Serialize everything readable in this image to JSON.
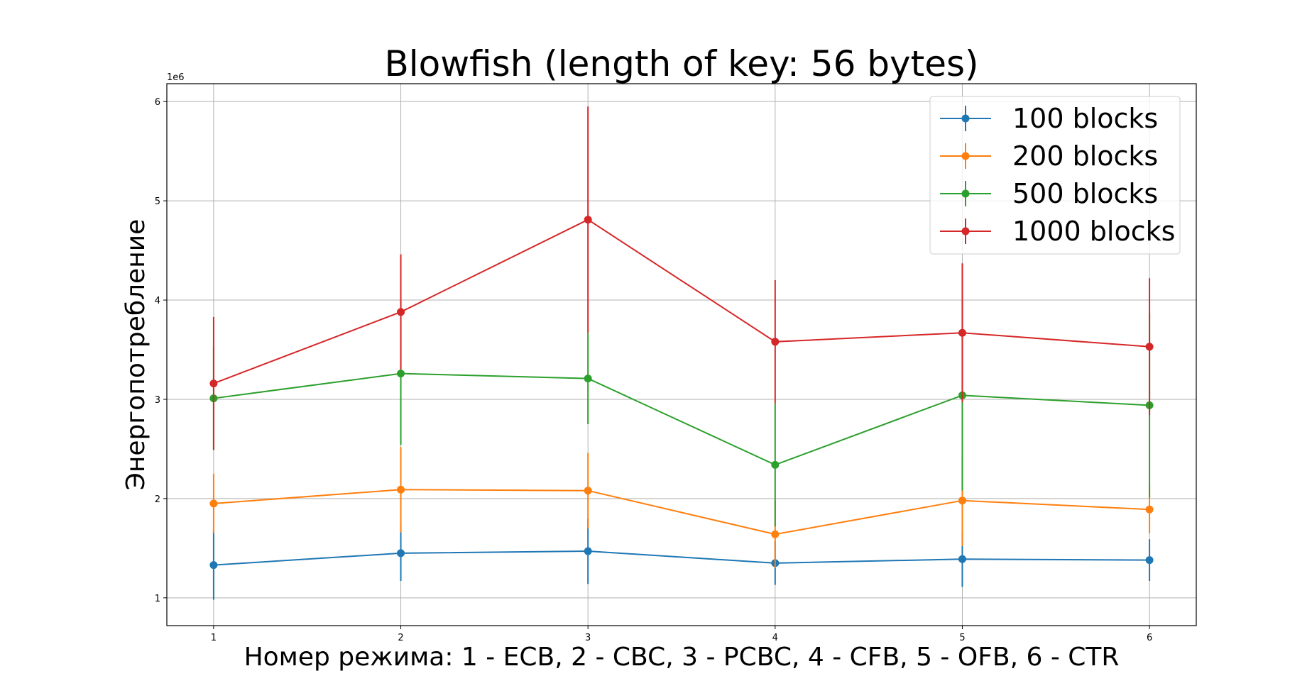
{
  "chart_data": {
    "type": "line",
    "title": "Blowfish (length of key: 56 bytes)",
    "xlabel": "Номер режима: 1 - ECB, 2 - CBC, 3 - PCBC, 4 - CFB, 5 - OFB, 6 - CTR",
    "ylabel": "Энергопотребление",
    "y_offset_label": "1e6",
    "x": [
      1,
      2,
      3,
      4,
      5,
      6
    ],
    "x_ticks": [
      "1",
      "2",
      "3",
      "4",
      "5",
      "6"
    ],
    "y_ticks": [
      "1",
      "2",
      "3",
      "4",
      "5",
      "6"
    ],
    "xlim": [
      0.75,
      6.25
    ],
    "ylim": [
      0.72,
      6.18
    ],
    "grid": true,
    "legend_position": "top-right",
    "error_bars": true,
    "series": [
      {
        "name": "100 blocks",
        "color": "#1f77b4",
        "values": [
          1.33,
          1.45,
          1.47,
          1.35,
          1.39,
          1.38
        ],
        "errors": [
          0.35,
          0.28,
          0.33,
          0.22,
          0.28,
          0.21
        ]
      },
      {
        "name": "200 blocks",
        "color": "#ff7f0e",
        "values": [
          1.95,
          2.09,
          2.08,
          1.64,
          1.98,
          1.89
        ],
        "errors": [
          0.3,
          0.43,
          0.38,
          0.34,
          0.46,
          0.24
        ]
      },
      {
        "name": "500 blocks",
        "color": "#2ca02c",
        "values": [
          3.01,
          3.26,
          3.21,
          2.34,
          3.04,
          2.94
        ],
        "errors": [
          0.52,
          0.72,
          0.46,
          0.62,
          0.96,
          0.93
        ]
      },
      {
        "name": "1000 blocks",
        "color": "#d62728",
        "values": [
          3.16,
          3.88,
          4.81,
          3.58,
          3.67,
          3.53
        ],
        "errors": [
          0.67,
          0.58,
          1.14,
          0.62,
          0.7,
          0.69
        ]
      }
    ]
  }
}
